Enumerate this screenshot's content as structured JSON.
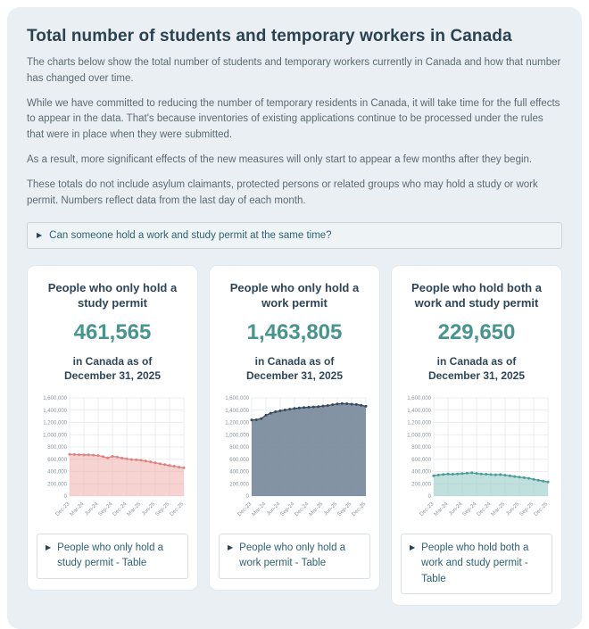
{
  "header": {
    "title": "Total number of students and temporary workers in Canada"
  },
  "paragraphs": {
    "p1": "The charts below show the total number of students and temporary workers currently in Canada and how that number has changed over time.",
    "p2": "While we have committed to reducing the number of temporary residents in Canada, it will take time for the full effects to appear in the data. That's because inventories of existing applications continue to be processed under the rules that were in place when they were submitted.",
    "p3": "As a result, more significant effects of the new measures will only start to appear a few months after they begin.",
    "p4": "These totals do not include asylum claimants, protected persons or related groups who may hold a study or work permit. Numbers reflect data from the last day of each month."
  },
  "faq": {
    "label": "Can someone hold a work and study permit at the same time?"
  },
  "icons": {
    "details_marker": "▶"
  },
  "colors": {
    "accent_teal": "#46958f",
    "heading": "#2b4251",
    "body_text": "#5b6b76",
    "link_teal": "#2e6172",
    "study_line": "#e2807f",
    "work_line": "#35495c",
    "both_line": "#4a9b96"
  },
  "cards": [
    {
      "title": "People who only hold a study permit",
      "value": "461,565",
      "subtitle": "in Canada as of December 31, 2025",
      "table_link": "People who only hold a study permit - Table"
    },
    {
      "title": "People who only hold a work permit",
      "value": "1,463,805",
      "subtitle": "in Canada as of December 31, 2025",
      "table_link": "People who only hold a work permit - Table"
    },
    {
      "title": "People who hold both a work and study permit",
      "value": "229,650",
      "subtitle": "in Canada as of December 31, 2025",
      "table_link": "People who hold both a work and study permit - Table"
    }
  ],
  "chart_data": [
    {
      "type": "area",
      "title": "People who only hold a study permit",
      "x": [
        "Dec-23",
        "Jan-24",
        "Feb-24",
        "Mar-24",
        "Apr-24",
        "May-24",
        "Jun-24",
        "Jul-24",
        "Aug-24",
        "Sep-24",
        "Oct-24",
        "Nov-24",
        "Dec-24",
        "Jan-25",
        "Feb-25",
        "Mar-25",
        "Apr-25",
        "May-25",
        "Jun-25",
        "Jul-25",
        "Aug-25",
        "Sep-25",
        "Oct-25",
        "Nov-25",
        "Dec-25"
      ],
      "values": [
        681000,
        678000,
        673000,
        670000,
        674000,
        667000,
        661000,
        643000,
        621000,
        648000,
        637000,
        620000,
        606000,
        597000,
        590000,
        583000,
        571000,
        558000,
        543000,
        527000,
        512000,
        498000,
        487000,
        472000,
        461565
      ],
      "x_tick_labels": [
        "Dec-23",
        "Mar-24",
        "Jun-24",
        "Sep-24",
        "Dec-24",
        "Mar-25",
        "Jun-25",
        "Sep-25",
        "Dec-25"
      ],
      "x_tick_every": 3,
      "ylim": [
        0,
        1600000
      ],
      "y_tick_step": 200000,
      "grid": true,
      "legend": "none",
      "line_color": "#e2807f",
      "fill_color": "#f0b4b2",
      "fill_opacity": 0.6
    },
    {
      "type": "area",
      "title": "People who only hold a work permit",
      "x": [
        "Dec-23",
        "Jan-24",
        "Feb-24",
        "Mar-24",
        "Apr-24",
        "May-24",
        "Jun-24",
        "Jul-24",
        "Aug-24",
        "Sep-24",
        "Oct-24",
        "Nov-24",
        "Dec-24",
        "Jan-25",
        "Feb-25",
        "Mar-25",
        "Apr-25",
        "May-25",
        "Jun-25",
        "Jul-25",
        "Aug-25",
        "Sep-25",
        "Oct-25",
        "Nov-25",
        "Dec-25"
      ],
      "values": [
        1239000,
        1243000,
        1262000,
        1318000,
        1352000,
        1374000,
        1390000,
        1404000,
        1416000,
        1428000,
        1437000,
        1443000,
        1449000,
        1453000,
        1459000,
        1467000,
        1476000,
        1490000,
        1502000,
        1509000,
        1506000,
        1498000,
        1493000,
        1481000,
        1463805
      ],
      "x_tick_labels": [
        "Dec-23",
        "Mar-24",
        "Jun-24",
        "Sep-24",
        "Dec-24",
        "Mar-25",
        "Jun-25",
        "Sep-25",
        "Dec-25"
      ],
      "x_tick_every": 3,
      "ylim": [
        0,
        1600000
      ],
      "y_tick_step": 200000,
      "grid": true,
      "legend": "none",
      "line_color": "#35495c",
      "fill_color": "#76879a",
      "fill_opacity": 0.9
    },
    {
      "type": "area",
      "title": "People who hold both a work and study permit",
      "x": [
        "Dec-23",
        "Jan-24",
        "Feb-24",
        "Mar-24",
        "Apr-24",
        "May-24",
        "Jun-24",
        "Jul-24",
        "Aug-24",
        "Sep-24",
        "Oct-24",
        "Nov-24",
        "Dec-24",
        "Jan-25",
        "Feb-25",
        "Mar-25",
        "Apr-25",
        "May-25",
        "Jun-25",
        "Jul-25",
        "Aug-25",
        "Sep-25",
        "Oct-25",
        "Nov-25",
        "Dec-25"
      ],
      "values": [
        331000,
        344000,
        354000,
        360000,
        357000,
        361000,
        367000,
        373000,
        379000,
        369000,
        361000,
        356000,
        351000,
        347000,
        350000,
        341000,
        330000,
        318000,
        309000,
        299000,
        289000,
        272000,
        257000,
        243000,
        229650
      ],
      "x_tick_labels": [
        "Dec-23",
        "Mar-24",
        "Jun-24",
        "Sep-24",
        "Dec-24",
        "Mar-25",
        "Jun-25",
        "Sep-25",
        "Dec-25"
      ],
      "x_tick_every": 3,
      "ylim": [
        0,
        1600000
      ],
      "y_tick_step": 200000,
      "grid": true,
      "legend": "none",
      "line_color": "#4a9b96",
      "fill_color": "#9ed0cd",
      "fill_opacity": 0.65
    }
  ]
}
